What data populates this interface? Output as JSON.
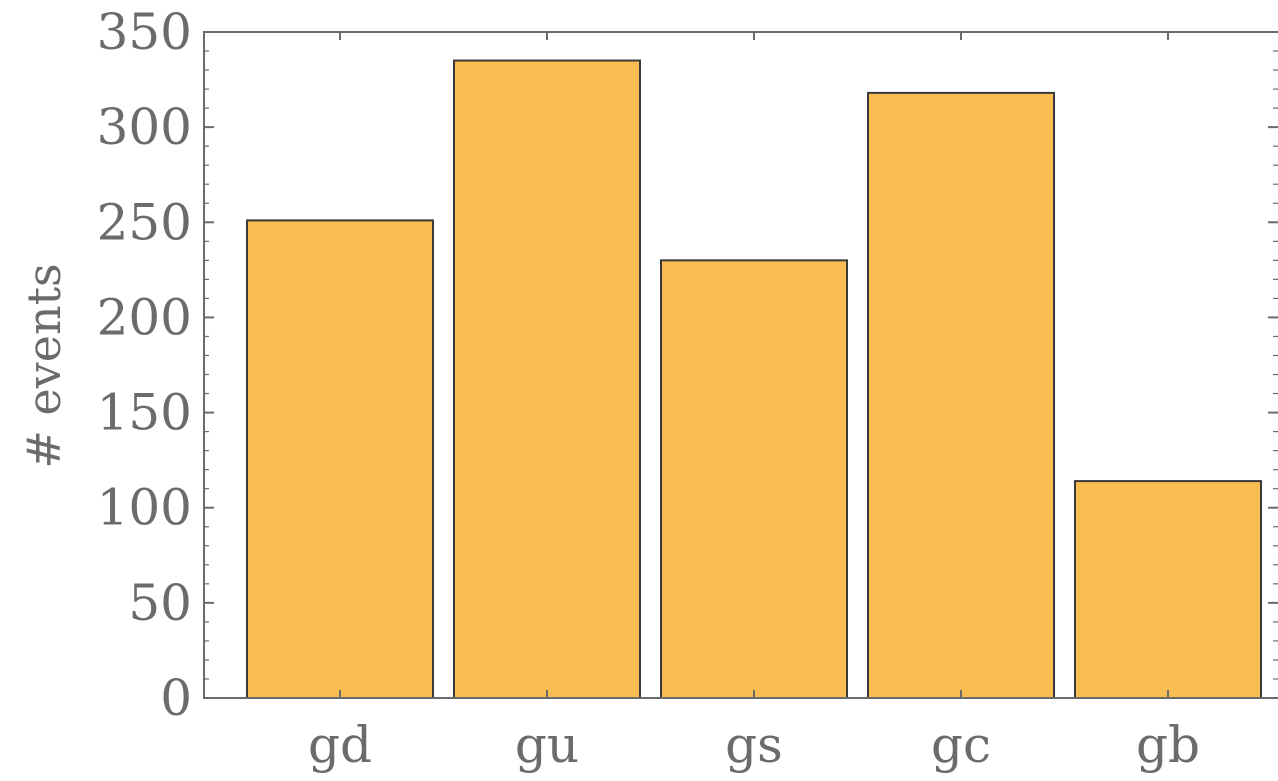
{
  "chart_data": {
    "type": "bar",
    "categories": [
      "gd",
      "gu",
      "gs",
      "gc",
      "gb"
    ],
    "values": [
      251,
      335,
      230,
      318,
      114
    ],
    "title": "",
    "xlabel": "",
    "ylabel": "# events",
    "ylim": [
      0,
      350
    ],
    "yticks": [
      0,
      50,
      100,
      150,
      200,
      250,
      300,
      350
    ],
    "grid": false,
    "colors": {
      "bar_fill": "#f9bd52",
      "bar_stroke": "#3a3a3a",
      "axis": "#6b6b6b",
      "text": "#6b6b6b"
    }
  }
}
